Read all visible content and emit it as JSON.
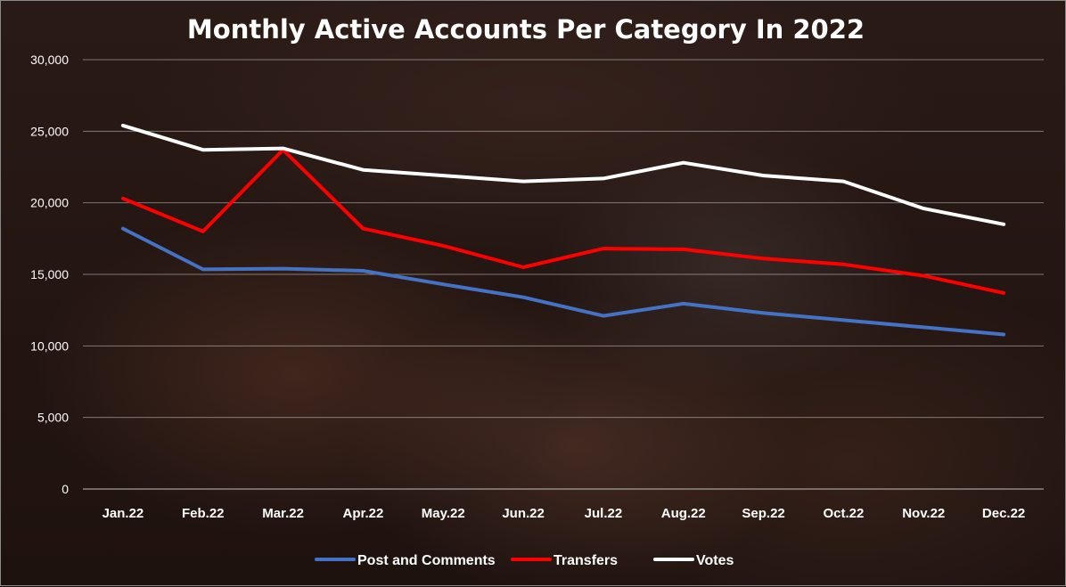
{
  "chart_data": {
    "type": "line",
    "title": "Monthly Active Accounts Per Category In 2022",
    "xlabel": "",
    "ylabel": "",
    "categories": [
      "Jan.22",
      "Feb.22",
      "Mar.22",
      "Apr.22",
      "May.22",
      "Jun.22",
      "Jul.22",
      "Aug.22",
      "Sep.22",
      "Oct.22",
      "Nov.22",
      "Dec.22"
    ],
    "ylim": [
      0,
      30000
    ],
    "yticks": [
      0,
      5000,
      10000,
      15000,
      20000,
      25000,
      30000
    ],
    "ytick_labels": [
      "0",
      "5,000",
      "10,000",
      "15,000",
      "20,000",
      "25,000",
      "30,000"
    ],
    "grid": true,
    "legend_position": "bottom",
    "series": [
      {
        "name": "Post and Comments",
        "color": "#4472c4",
        "values": [
          18200,
          15350,
          15400,
          15250,
          14300,
          13400,
          12100,
          12950,
          12300,
          11800,
          11300,
          10800
        ]
      },
      {
        "name": "Transfers",
        "color": "#ff0000",
        "values": [
          20300,
          18000,
          23700,
          18200,
          17000,
          15500,
          16800,
          16750,
          16100,
          15700,
          14900,
          13700
        ]
      },
      {
        "name": "Votes",
        "color": "#ffffff",
        "values": [
          25400,
          23700,
          23800,
          22300,
          21900,
          21500,
          21700,
          22800,
          21900,
          21500,
          19600,
          18500
        ]
      }
    ]
  }
}
